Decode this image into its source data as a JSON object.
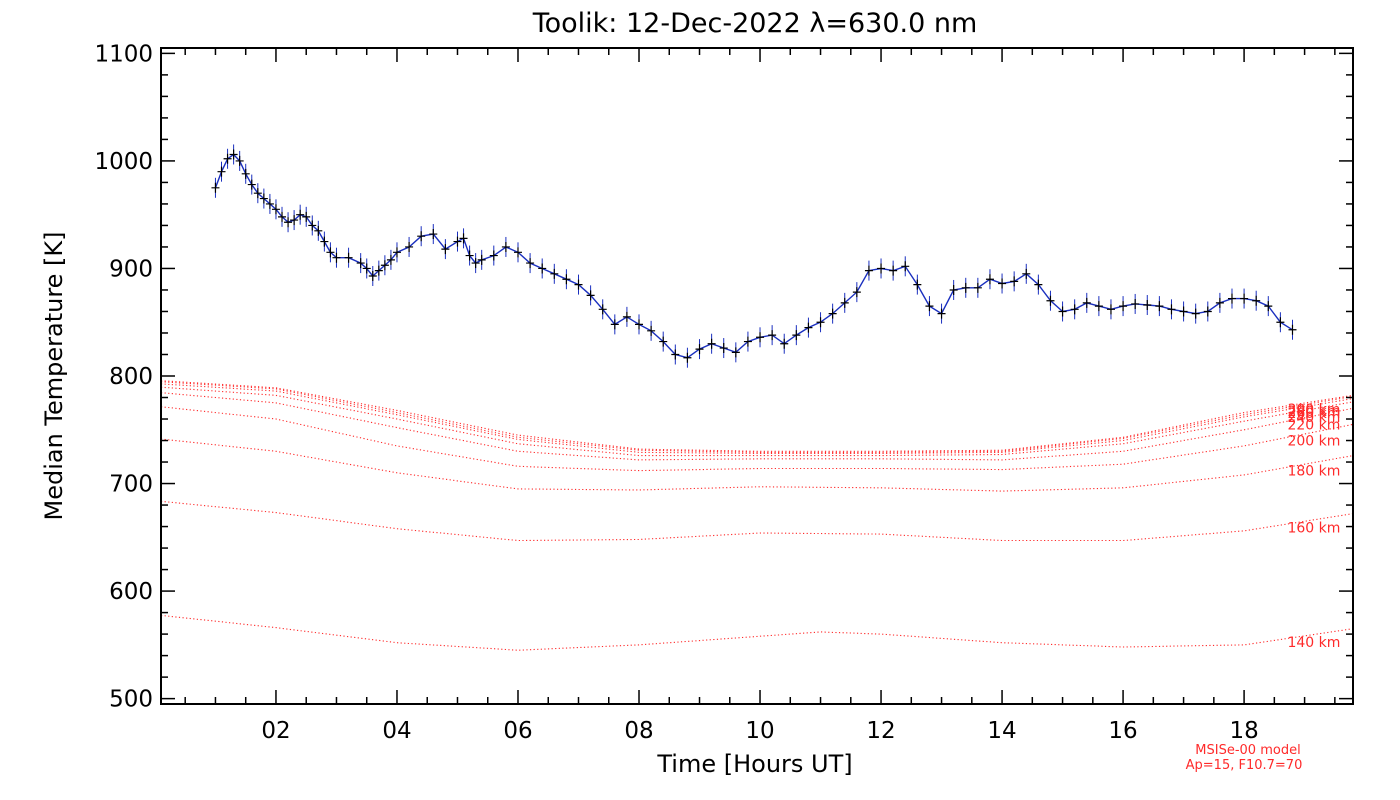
{
  "chart_data": {
    "type": "line",
    "title": "Toolik: 12-Dec-2022 λ=630.0 nm",
    "xlabel": "Time [Hours UT]",
    "ylabel": "Median Temperature [K]",
    "xlim": [
      0.1,
      19.8
    ],
    "ylim": [
      495,
      1105
    ],
    "x_ticks": [
      {
        "value": 2,
        "label": "02"
      },
      {
        "value": 4,
        "label": "04"
      },
      {
        "value": 6,
        "label": "06"
      },
      {
        "value": 8,
        "label": "08"
      },
      {
        "value": 10,
        "label": "10"
      },
      {
        "value": 12,
        "label": "12"
      },
      {
        "value": 14,
        "label": "14"
      },
      {
        "value": 16,
        "label": "16"
      },
      {
        "value": 18,
        "label": "18"
      }
    ],
    "y_ticks": [
      {
        "value": 500,
        "label": "500"
      },
      {
        "value": 600,
        "label": "600"
      },
      {
        "value": 700,
        "label": "700"
      },
      {
        "value": 800,
        "label": "800"
      },
      {
        "value": 900,
        "label": "900"
      },
      {
        "value": 1000,
        "label": "1000"
      },
      {
        "value": 1100,
        "label": "1100"
      }
    ],
    "grid": false,
    "colors": {
      "measured_marker": "#000000",
      "error_bar": "#1a2fbf",
      "model": "#ff2a2a"
    },
    "measured": {
      "x": [
        1.0,
        1.1,
        1.2,
        1.3,
        1.4,
        1.5,
        1.6,
        1.7,
        1.8,
        1.9,
        2.0,
        2.1,
        2.2,
        2.3,
        2.4,
        2.5,
        2.6,
        2.7,
        2.8,
        2.9,
        3.0,
        3.2,
        3.4,
        3.5,
        3.6,
        3.7,
        3.8,
        3.9,
        4.0,
        4.2,
        4.4,
        4.6,
        4.8,
        5.0,
        5.1,
        5.2,
        5.3,
        5.4,
        5.6,
        5.8,
        6.0,
        6.2,
        6.4,
        6.6,
        6.8,
        7.0,
        7.2,
        7.4,
        7.6,
        7.8,
        8.0,
        8.2,
        8.4,
        8.6,
        8.8,
        9.0,
        9.2,
        9.4,
        9.6,
        9.8,
        10.0,
        10.2,
        10.4,
        10.6,
        10.8,
        11.0,
        11.2,
        11.4,
        11.6,
        11.8,
        12.0,
        12.2,
        12.4,
        12.6,
        12.8,
        13.0,
        13.2,
        13.4,
        13.6,
        13.8,
        14.0,
        14.2,
        14.4,
        14.6,
        14.8,
        15.0,
        15.2,
        15.4,
        15.6,
        15.8,
        16.0,
        16.2,
        16.4,
        16.6,
        16.8,
        17.0,
        17.2,
        17.4,
        17.6,
        17.8,
        18.0,
        18.2,
        18.4,
        18.6,
        18.8
      ],
      "y": [
        975,
        990,
        1002,
        1006,
        1000,
        988,
        978,
        970,
        965,
        960,
        955,
        948,
        943,
        945,
        950,
        948,
        940,
        935,
        925,
        915,
        910,
        910,
        905,
        900,
        893,
        898,
        903,
        908,
        915,
        920,
        930,
        932,
        918,
        925,
        928,
        912,
        905,
        908,
        912,
        920,
        915,
        905,
        900,
        895,
        890,
        885,
        875,
        862,
        848,
        855,
        848,
        842,
        832,
        820,
        817,
        825,
        830,
        826,
        822,
        832,
        836,
        838,
        830,
        838,
        845,
        850,
        858,
        868,
        878,
        898,
        900,
        898,
        902,
        885,
        865,
        858,
        880,
        882,
        882,
        890,
        886,
        888,
        895,
        885,
        870,
        860,
        862,
        868,
        865,
        862,
        865,
        867,
        866,
        865,
        862,
        860,
        858,
        860,
        868,
        872,
        872,
        870,
        865,
        850,
        843
      ]
    },
    "model_series": [
      {
        "name": "140 km",
        "x": [
          0,
          2,
          4,
          6,
          8,
          10,
          11,
          12,
          14,
          16,
          18,
          19.8
        ],
        "values": [
          578,
          566,
          552,
          545,
          550,
          558,
          562,
          560,
          552,
          548,
          550,
          565
        ]
      },
      {
        "name": "160 km",
        "x": [
          0,
          2,
          4,
          6,
          8,
          10,
          12,
          14,
          16,
          18,
          19.8
        ],
        "values": [
          684,
          673,
          658,
          647,
          648,
          654,
          653,
          647,
          647,
          656,
          672
        ]
      },
      {
        "name": "180 km",
        "x": [
          0,
          2,
          4,
          6,
          8,
          10,
          12,
          14,
          16,
          18,
          19.8
        ],
        "values": [
          742,
          730,
          710,
          695,
          694,
          697,
          696,
          693,
          696,
          708,
          726
        ]
      },
      {
        "name": "200 km",
        "x": [
          0,
          2,
          4,
          6,
          8,
          10,
          12,
          14,
          16,
          18,
          19.8
        ],
        "values": [
          772,
          760,
          735,
          716,
          712,
          714,
          714,
          713,
          718,
          735,
          755
        ]
      },
      {
        "name": "220 km",
        "x": [
          0,
          2,
          4,
          6,
          8,
          10,
          12,
          14,
          16,
          18,
          19.8
        ],
        "values": [
          785,
          775,
          752,
          730,
          722,
          723,
          723,
          722,
          730,
          750,
          770
        ]
      },
      {
        "name": "240 km",
        "x": [
          0,
          2,
          4,
          6,
          8,
          10,
          12,
          14,
          16,
          18,
          19.8
        ],
        "values": [
          790,
          782,
          760,
          737,
          726,
          726,
          726,
          727,
          737,
          758,
          776
        ]
      },
      {
        "name": "260 km",
        "x": [
          0,
          2,
          4,
          6,
          8,
          10,
          12,
          14,
          16,
          18,
          19.8
        ],
        "values": [
          793,
          786,
          764,
          741,
          729,
          728,
          728,
          729,
          740,
          762,
          779
        ]
      },
      {
        "name": "280 km",
        "x": [
          0,
          2,
          4,
          6,
          8,
          10,
          12,
          14,
          16,
          18,
          19.8
        ],
        "values": [
          795,
          788,
          766,
          743,
          731,
          729,
          729,
          730,
          742,
          764,
          781
        ]
      },
      {
        "name": "300 km",
        "x": [
          0,
          2,
          4,
          6,
          8,
          10,
          12,
          14,
          16,
          18,
          19.8
        ],
        "values": [
          796,
          789,
          768,
          745,
          732,
          730,
          730,
          731,
          743,
          766,
          782
        ]
      }
    ],
    "annotations": [
      "MSISe-00 model",
      "Ap=15, F10.7=70"
    ]
  }
}
